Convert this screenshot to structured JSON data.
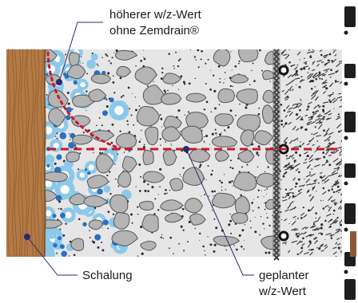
{
  "labels": {
    "hoeher_line1": "höherer w/z-Wert",
    "hoeher_line2": "ohne Zemdrain®",
    "schalung": "Schalung",
    "geplant_line1": "geplanter",
    "geplant_line2": "w/z-Wert"
  },
  "colors": {
    "formwork_wood": "#b37a45",
    "formwork_grain": "#8c5a2c",
    "concrete": "#e6e6e6",
    "aggregate": "#b4b4b4",
    "aggregate_stroke": "#555555",
    "water_light": "#8cc8ea",
    "water_dark": "#2b6fc0",
    "reinforcement": "#3a3a3a",
    "dashed_line": "#c8192e",
    "leader_line": "#2a2a6e"
  },
  "icons": {
    "wood": "wood-grain-texture",
    "rebar": "rebar-cross-section-icon"
  }
}
